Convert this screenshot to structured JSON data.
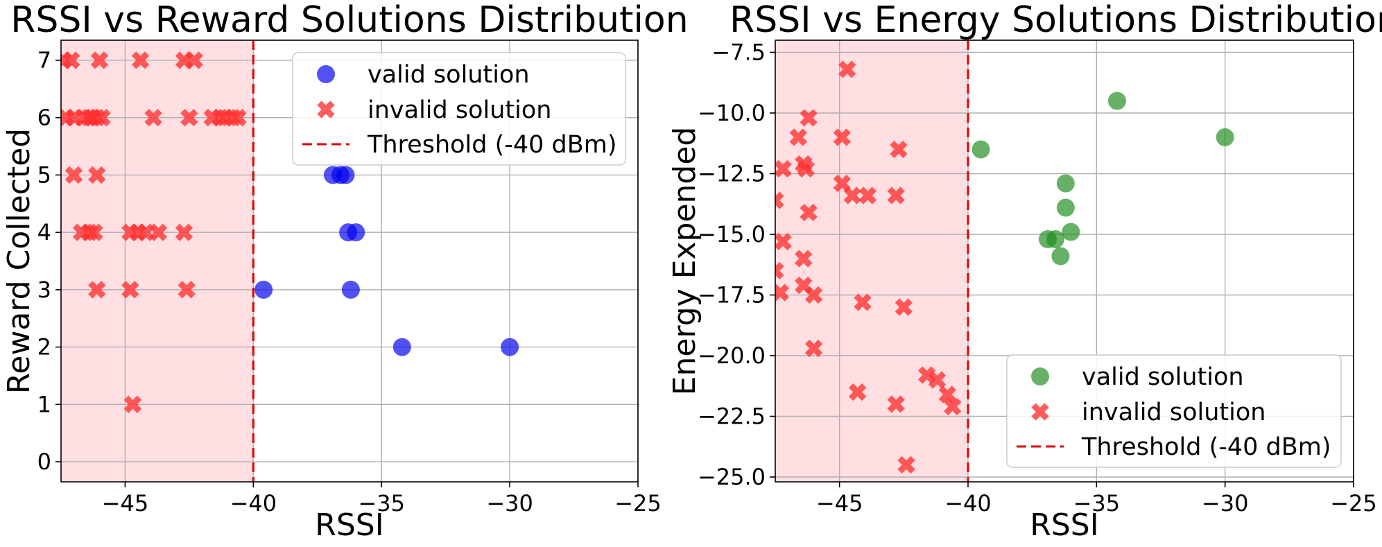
{
  "chart_data": [
    {
      "type": "scatter",
      "title": "RSSI vs Reward Solutions Distribution",
      "xlabel": "RSSI",
      "ylabel": "Reward Collected",
      "xlim": [
        -47.5,
        -25
      ],
      "ylim": [
        -0.35,
        7.35
      ],
      "xticks": [
        -45,
        -40,
        -35,
        -30,
        -25
      ],
      "yticks": [
        0,
        1,
        2,
        3,
        4,
        5,
        6,
        7
      ],
      "ytick_labels": [
        "0",
        "1",
        "2",
        "3",
        "4",
        "5",
        "6",
        "7"
      ],
      "xtick_labels": [
        "−45",
        "−40",
        "−35",
        "−30",
        "−25"
      ],
      "grid": true,
      "threshold": {
        "x": -40,
        "label": "Threshold (-40 dBm)",
        "color": "#e00000"
      },
      "shaded_region": {
        "x": [
          -47.5,
          -40
        ],
        "color": "#ffdfe2"
      },
      "legend": {
        "position": "upper-right"
      },
      "series": [
        {
          "name": "valid solution",
          "marker": "circle",
          "color": "#0000ee",
          "points": [
            [
              -36.9,
              5
            ],
            [
              -36.6,
              5
            ],
            [
              -36.4,
              5
            ],
            [
              -36.3,
              4
            ],
            [
              -36.0,
              4
            ],
            [
              -39.6,
              3
            ],
            [
              -36.2,
              3
            ],
            [
              -34.2,
              2
            ],
            [
              -30.0,
              2
            ]
          ]
        },
        {
          "name": "invalid solution",
          "marker": "x",
          "color": "#ff3030",
          "points": [
            [
              -47.4,
              7
            ],
            [
              -47.1,
              7
            ],
            [
              -46.0,
              7
            ],
            [
              -44.4,
              7
            ],
            [
              -42.7,
              7
            ],
            [
              -42.3,
              7
            ],
            [
              -47.3,
              6
            ],
            [
              -47.0,
              6
            ],
            [
              -46.6,
              6
            ],
            [
              -46.4,
              6
            ],
            [
              -46.3,
              6
            ],
            [
              -46.1,
              6
            ],
            [
              -45.9,
              6
            ],
            [
              -43.9,
              6
            ],
            [
              -42.5,
              6
            ],
            [
              -41.6,
              6
            ],
            [
              -41.3,
              6
            ],
            [
              -41.1,
              6
            ],
            [
              -40.8,
              6
            ],
            [
              -40.6,
              6
            ],
            [
              -47.0,
              5
            ],
            [
              -46.1,
              5
            ],
            [
              -46.7,
              4
            ],
            [
              -46.4,
              4
            ],
            [
              -46.2,
              4
            ],
            [
              -44.8,
              4
            ],
            [
              -44.5,
              4
            ],
            [
              -44.2,
              4
            ],
            [
              -43.7,
              4
            ],
            [
              -42.7,
              4
            ],
            [
              -46.1,
              3
            ],
            [
              -44.8,
              3
            ],
            [
              -42.6,
              3
            ],
            [
              -44.7,
              1
            ]
          ]
        }
      ]
    },
    {
      "type": "scatter",
      "title": "RSSI vs Energy Solutions Distribution",
      "xlabel": "RSSI",
      "ylabel": "Energy Expended",
      "xlim": [
        -47.5,
        -25
      ],
      "ylim": [
        -25.2,
        -7.0
      ],
      "xticks": [
        -45,
        -40,
        -35,
        -30,
        -25
      ],
      "yticks": [
        -7.5,
        -10.0,
        -12.5,
        -15.0,
        -17.5,
        -20.0,
        -22.5,
        -25.0
      ],
      "ytick_labels": [
        "−7.5",
        "−10.0",
        "−12.5",
        "−15.0",
        "−17.5",
        "−20.0",
        "−22.5",
        "−25.0"
      ],
      "xtick_labels": [
        "−45",
        "−40",
        "−35",
        "−30",
        "−25"
      ],
      "grid": true,
      "threshold": {
        "x": -40,
        "label": "Threshold (-40 dBm)",
        "color": "#e00000"
      },
      "shaded_region": {
        "x": [
          -47.5,
          -40
        ],
        "color": "#ffdfe2"
      },
      "legend": {
        "position": "lower-right"
      },
      "series": [
        {
          "name": "valid solution",
          "marker": "circle",
          "color": "#1e8c1e",
          "points": [
            [
              -34.2,
              -9.5
            ],
            [
              -30.0,
              -11.0
            ],
            [
              -39.5,
              -11.5
            ],
            [
              -36.2,
              -12.9
            ],
            [
              -36.2,
              -13.9
            ],
            [
              -36.0,
              -14.9
            ],
            [
              -36.9,
              -15.2
            ],
            [
              -36.6,
              -15.2
            ],
            [
              -36.4,
              -15.9
            ]
          ]
        },
        {
          "name": "invalid solution",
          "marker": "x",
          "color": "#ff3030",
          "points": [
            [
              -44.7,
              -8.2
            ],
            [
              -46.2,
              -10.2
            ],
            [
              -46.6,
              -11.0
            ],
            [
              -44.9,
              -11.0
            ],
            [
              -42.7,
              -11.5
            ],
            [
              -47.2,
              -12.3
            ],
            [
              -46.4,
              -12.1
            ],
            [
              -46.3,
              -12.3
            ],
            [
              -44.9,
              -12.9
            ],
            [
              -44.5,
              -13.4
            ],
            [
              -43.9,
              -13.4
            ],
            [
              -42.8,
              -13.4
            ],
            [
              -47.5,
              -13.6
            ],
            [
              -46.2,
              -14.1
            ],
            [
              -47.2,
              -15.3
            ],
            [
              -46.4,
              -16.0
            ],
            [
              -47.5,
              -16.5
            ],
            [
              -46.4,
              -17.1
            ],
            [
              -47.3,
              -17.4
            ],
            [
              -46.0,
              -17.5
            ],
            [
              -44.1,
              -17.8
            ],
            [
              -42.5,
              -18.0
            ],
            [
              -46.0,
              -19.7
            ],
            [
              -41.6,
              -20.8
            ],
            [
              -41.2,
              -21.0
            ],
            [
              -40.8,
              -21.6
            ],
            [
              -40.6,
              -22.1
            ],
            [
              -44.3,
              -21.5
            ],
            [
              -42.8,
              -22.0
            ],
            [
              -42.4,
              -24.5
            ]
          ]
        }
      ]
    }
  ]
}
